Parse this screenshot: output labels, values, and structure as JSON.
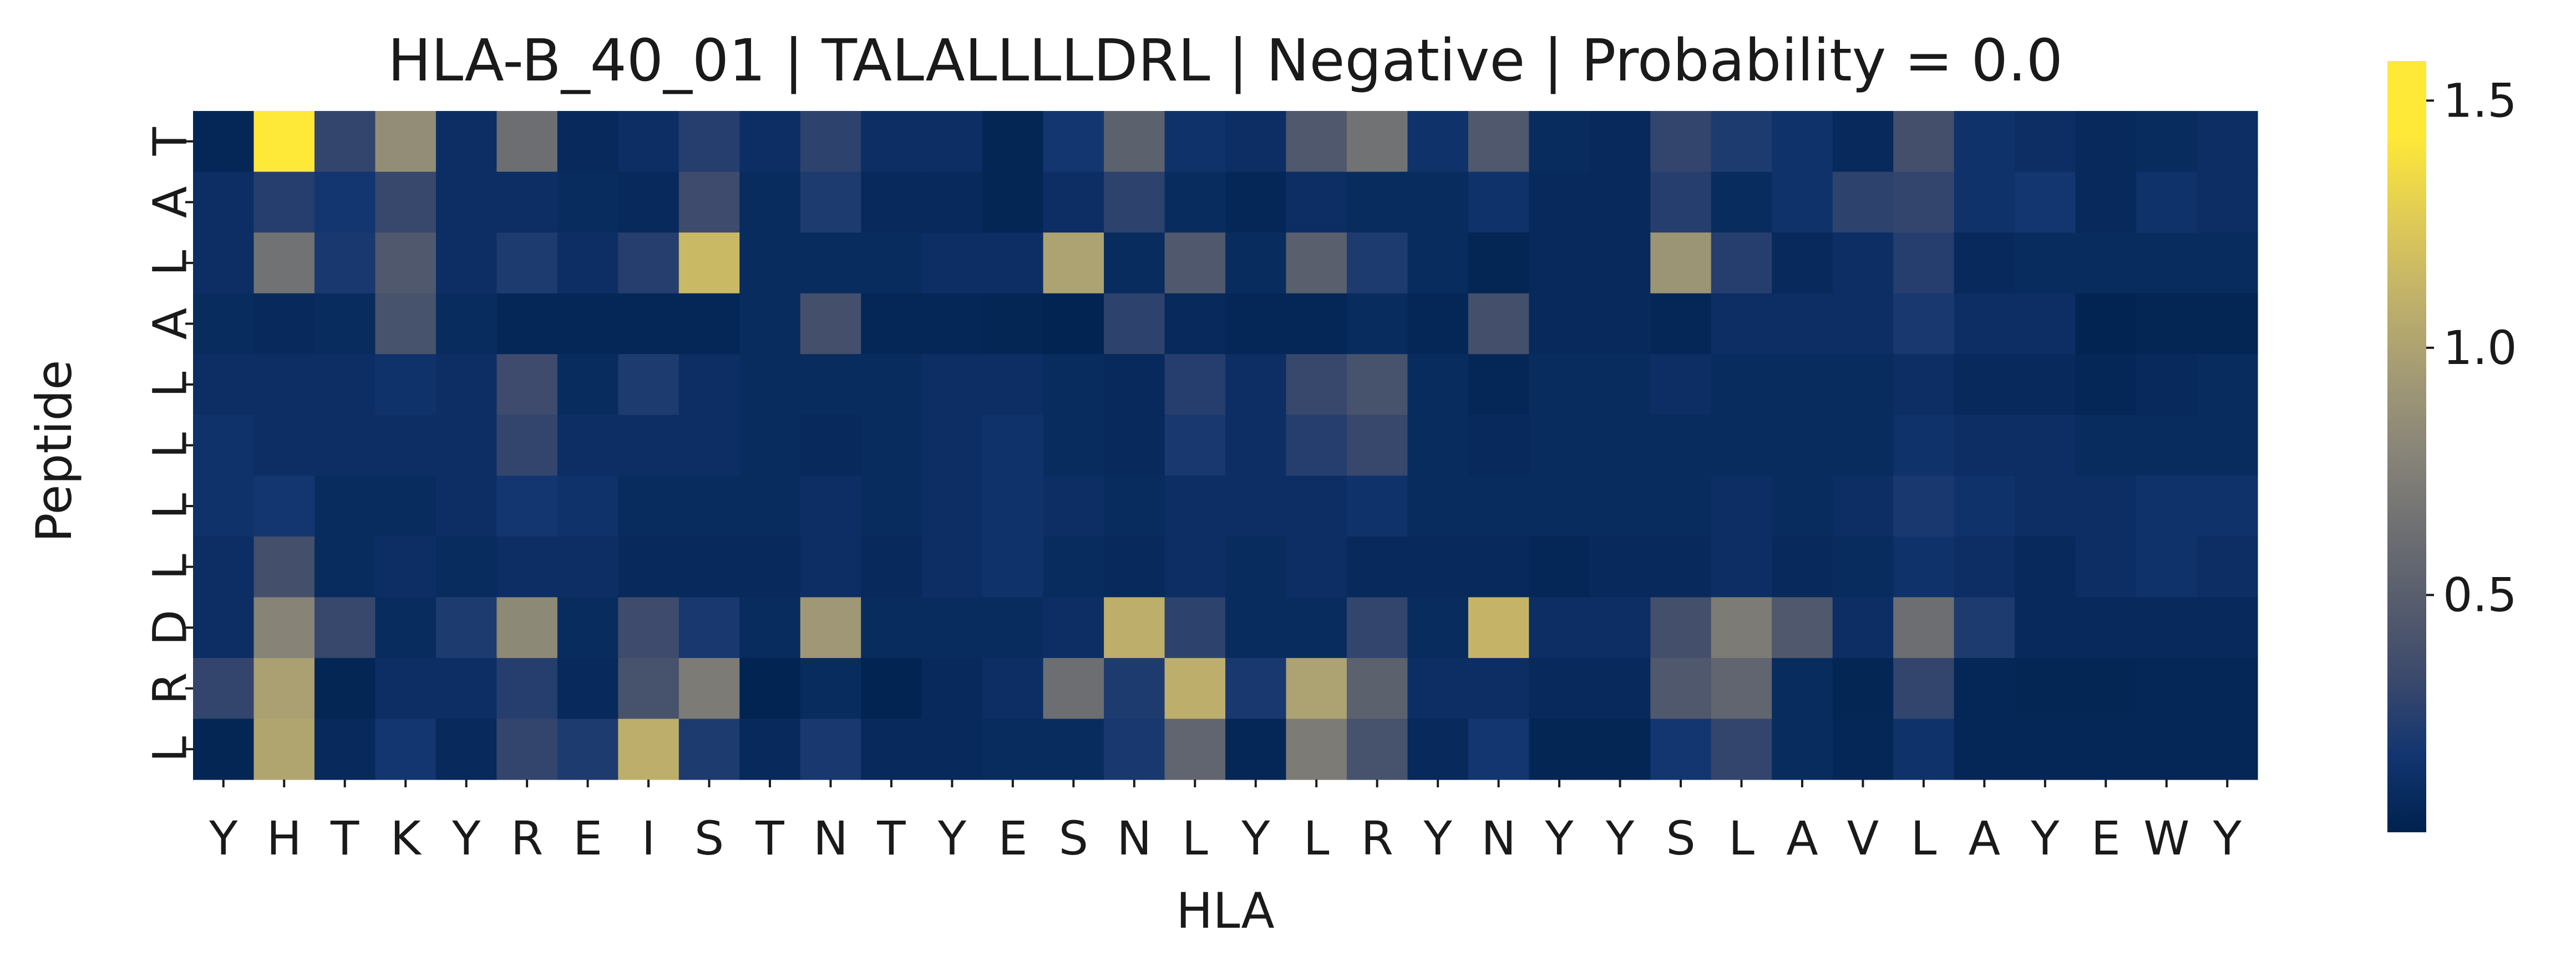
{
  "chart_data": {
    "type": "heatmap",
    "title": "HLA-B_40_01 | TALALLLLDRL | Negative | Probability = 0.0",
    "xlabel": "HLA",
    "ylabel": "Peptide",
    "x": [
      "Y",
      "H",
      "T",
      "K",
      "Y",
      "R",
      "E",
      "I",
      "S",
      "T",
      "N",
      "T",
      "Y",
      "E",
      "S",
      "N",
      "L",
      "Y",
      "L",
      "R",
      "Y",
      "N",
      "Y",
      "Y",
      "S",
      "L",
      "A",
      "V",
      "L",
      "A",
      "Y",
      "E",
      "W",
      "Y"
    ],
    "y": [
      "T",
      "A",
      "L",
      "A",
      "L",
      "L",
      "L",
      "L",
      "D",
      "R",
      "L"
    ],
    "colormap": "cividis",
    "colorbar": {
      "ticks": [
        0.5,
        1.0,
        1.5
      ],
      "tick_labels": [
        "0.5",
        "1.0",
        "1.5"
      ],
      "range": [
        0.02,
        1.58
      ]
    },
    "values": [
      [
        0.06,
        1.55,
        0.3,
        0.85,
        0.12,
        0.62,
        0.08,
        0.12,
        0.25,
        0.12,
        0.28,
        0.12,
        0.12,
        0.05,
        0.18,
        0.52,
        0.15,
        0.12,
        0.45,
        0.65,
        0.15,
        0.45,
        0.1,
        0.08,
        0.3,
        0.22,
        0.15,
        0.08,
        0.38,
        0.15,
        0.12,
        0.08,
        0.1,
        0.12
      ],
      [
        0.12,
        0.25,
        0.18,
        0.32,
        0.12,
        0.12,
        0.1,
        0.08,
        0.35,
        0.1,
        0.22,
        0.08,
        0.08,
        0.05,
        0.12,
        0.28,
        0.1,
        0.06,
        0.12,
        0.1,
        0.1,
        0.15,
        0.08,
        0.08,
        0.25,
        0.1,
        0.15,
        0.28,
        0.3,
        0.15,
        0.18,
        0.08,
        0.15,
        0.12
      ],
      [
        0.12,
        0.65,
        0.2,
        0.45,
        0.12,
        0.22,
        0.12,
        0.25,
        1.15,
        0.1,
        0.1,
        0.1,
        0.12,
        0.12,
        1.0,
        0.1,
        0.45,
        0.1,
        0.5,
        0.22,
        0.1,
        0.05,
        0.08,
        0.08,
        0.9,
        0.25,
        0.08,
        0.12,
        0.25,
        0.08,
        0.1,
        0.1,
        0.1,
        0.1
      ],
      [
        0.1,
        0.08,
        0.1,
        0.4,
        0.1,
        0.06,
        0.06,
        0.06,
        0.06,
        0.1,
        0.38,
        0.06,
        0.06,
        0.05,
        0.04,
        0.28,
        0.08,
        0.06,
        0.06,
        0.1,
        0.06,
        0.38,
        0.08,
        0.08,
        0.06,
        0.12,
        0.12,
        0.12,
        0.2,
        0.12,
        0.12,
        0.04,
        0.05,
        0.05
      ],
      [
        0.12,
        0.12,
        0.12,
        0.15,
        0.12,
        0.35,
        0.1,
        0.22,
        0.12,
        0.1,
        0.1,
        0.1,
        0.12,
        0.12,
        0.1,
        0.08,
        0.25,
        0.12,
        0.32,
        0.4,
        0.1,
        0.06,
        0.1,
        0.1,
        0.12,
        0.1,
        0.1,
        0.1,
        0.12,
        0.08,
        0.08,
        0.06,
        0.08,
        0.1
      ],
      [
        0.15,
        0.12,
        0.12,
        0.12,
        0.12,
        0.3,
        0.12,
        0.12,
        0.12,
        0.1,
        0.08,
        0.1,
        0.12,
        0.15,
        0.1,
        0.08,
        0.2,
        0.12,
        0.25,
        0.32,
        0.1,
        0.08,
        0.1,
        0.1,
        0.1,
        0.1,
        0.1,
        0.1,
        0.15,
        0.12,
        0.12,
        0.1,
        0.1,
        0.1
      ],
      [
        0.15,
        0.18,
        0.1,
        0.1,
        0.12,
        0.18,
        0.15,
        0.1,
        0.1,
        0.1,
        0.12,
        0.1,
        0.12,
        0.15,
        0.12,
        0.1,
        0.12,
        0.12,
        0.12,
        0.15,
        0.1,
        0.1,
        0.1,
        0.1,
        0.1,
        0.12,
        0.1,
        0.12,
        0.2,
        0.15,
        0.12,
        0.12,
        0.15,
        0.15
      ],
      [
        0.12,
        0.38,
        0.1,
        0.12,
        0.1,
        0.12,
        0.12,
        0.08,
        0.08,
        0.08,
        0.12,
        0.08,
        0.12,
        0.15,
        0.1,
        0.08,
        0.12,
        0.1,
        0.12,
        0.08,
        0.08,
        0.08,
        0.06,
        0.08,
        0.08,
        0.12,
        0.08,
        0.1,
        0.15,
        0.12,
        0.08,
        0.12,
        0.15,
        0.12
      ],
      [
        0.12,
        0.78,
        0.32,
        0.1,
        0.22,
        0.82,
        0.1,
        0.35,
        0.2,
        0.1,
        0.92,
        0.1,
        0.1,
        0.1,
        0.12,
        1.08,
        0.28,
        0.1,
        0.1,
        0.3,
        0.1,
        1.12,
        0.12,
        0.12,
        0.38,
        0.72,
        0.45,
        0.12,
        0.62,
        0.22,
        0.08,
        0.08,
        0.08,
        0.08
      ],
      [
        0.3,
        0.98,
        0.05,
        0.12,
        0.12,
        0.25,
        0.08,
        0.4,
        0.72,
        0.04,
        0.1,
        0.04,
        0.08,
        0.12,
        0.62,
        0.22,
        1.08,
        0.2,
        1.0,
        0.52,
        0.12,
        0.12,
        0.08,
        0.08,
        0.45,
        0.55,
        0.1,
        0.05,
        0.3,
        0.06,
        0.05,
        0.05,
        0.06,
        0.06
      ],
      [
        0.05,
        1.02,
        0.08,
        0.18,
        0.08,
        0.3,
        0.22,
        1.08,
        0.22,
        0.08,
        0.2,
        0.08,
        0.08,
        0.1,
        0.1,
        0.2,
        0.55,
        0.06,
        0.72,
        0.4,
        0.08,
        0.18,
        0.05,
        0.05,
        0.18,
        0.3,
        0.1,
        0.06,
        0.15,
        0.06,
        0.06,
        0.06,
        0.06,
        0.06
      ]
    ]
  }
}
